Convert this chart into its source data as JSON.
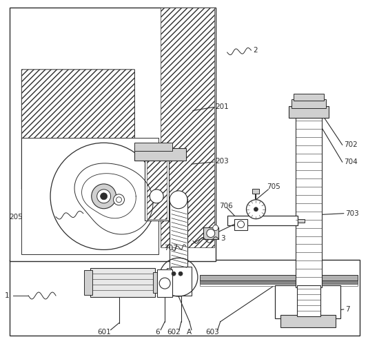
{
  "bg_color": "#ffffff",
  "lc": "#2c2c2c",
  "gray1": "#e8e8e8",
  "gray2": "#d0d0d0",
  "gray3": "#b0b0b0",
  "gray4": "#888888"
}
